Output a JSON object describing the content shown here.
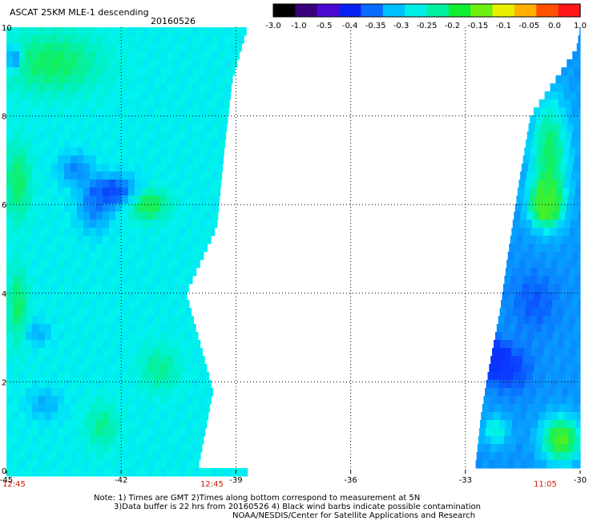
{
  "header": {
    "title": "ASCAT 25KM MLE-1 descending",
    "date": "20160526"
  },
  "colorbar": {
    "labels": [
      "-3.0",
      "-1.0",
      "-0.5",
      "-0.4",
      "-0.35",
      "-0.3",
      "-0.25",
      "-0.2",
      "-0.15",
      "-0.1",
      "-0.05",
      "0.0",
      "1.0"
    ],
    "colors": [
      "#000000",
      "#3a007a",
      "#4a0ad0",
      "#0820f0",
      "#0a6cff",
      "#00bfff",
      "#00f0e8",
      "#00f0a0",
      "#10f030",
      "#70f010",
      "#e8f000",
      "#ffb000",
      "#ff5000",
      "#ff1818"
    ]
  },
  "time_labels": {
    "left": "12:45",
    "middle": "12:45",
    "right": "11:05"
  },
  "notes": {
    "line1": "Note: 1) Times are GMT 2)Times along bottom correspond to measurement at 5N",
    "line2": "3)Data buffer is 22 hrs from 20160526 4) Black wind barbs indicate possible contamination",
    "line3": "NOAA/NESDIS/Center for Satellite Applications and Research"
  },
  "chart_data": {
    "type": "heatmap",
    "title": "ASCAT 25KM MLE-1 descending",
    "xlim": [
      -45,
      -30
    ],
    "ylim": [
      0,
      10
    ],
    "x_ticks": [
      "-45",
      "-42",
      "-39",
      "-36",
      "-33",
      "-30"
    ],
    "y_ticks": [
      "0",
      "2",
      "4",
      "6",
      "8",
      "10"
    ],
    "grid": true,
    "colorscale": "MLE-1 value",
    "swaths": [
      {
        "name": "left",
        "time": "12:45",
        "right_edge": [
          [
            0,
            -40.0
          ],
          [
            1.8,
            -39.6
          ],
          [
            4.0,
            -40.3
          ],
          [
            5.5,
            -39.5
          ],
          [
            7.3,
            -39.3
          ],
          [
            8.8,
            -39.1
          ],
          [
            10,
            -38.7
          ]
        ],
        "dominant": "cyan",
        "features": [
          {
            "type": "low",
            "x": -42.2,
            "y": 6.3,
            "rx": 0.7,
            "ry": 0.4,
            "value": -0.4
          },
          {
            "type": "low",
            "x": -43.2,
            "y": 6.8,
            "rx": 0.5,
            "ry": 0.4,
            "value": -0.35
          },
          {
            "type": "low",
            "x": -42.7,
            "y": 5.9,
            "rx": 0.5,
            "ry": 0.6,
            "value": -0.35
          },
          {
            "type": "high",
            "x": -43.8,
            "y": 9.2,
            "rx": 1.5,
            "ry": 0.8,
            "value": -0.2
          },
          {
            "type": "high",
            "x": -41.3,
            "y": 6.0,
            "rx": 0.6,
            "ry": 0.4,
            "value": -0.18
          },
          {
            "type": "high",
            "x": -44.7,
            "y": 6.5,
            "rx": 0.4,
            "ry": 1.0,
            "value": -0.2
          },
          {
            "type": "high",
            "x": -44.7,
            "y": 3.7,
            "rx": 0.3,
            "ry": 1.0,
            "value": -0.2
          },
          {
            "type": "high",
            "x": -41.0,
            "y": 2.3,
            "rx": 0.6,
            "ry": 0.6,
            "value": -0.22
          },
          {
            "type": "high",
            "x": -42.5,
            "y": 1.0,
            "rx": 0.5,
            "ry": 0.6,
            "value": -0.22
          },
          {
            "type": "low",
            "x": -44.0,
            "y": 1.5,
            "rx": 0.5,
            "ry": 0.4,
            "value": -0.32
          },
          {
            "type": "low",
            "x": -44.2,
            "y": 3.1,
            "rx": 0.4,
            "ry": 0.3,
            "value": -0.32
          },
          {
            "type": "low",
            "x": -44.8,
            "y": 9.3,
            "rx": 0.2,
            "ry": 0.3,
            "value": -0.4
          }
        ]
      },
      {
        "name": "right",
        "time": "11:05",
        "left_edge": [
          [
            0,
            -32.75
          ],
          [
            1.2,
            -32.6
          ],
          [
            2.0,
            -32.45
          ],
          [
            3.6,
            -32.1
          ],
          [
            4.8,
            -31.9
          ],
          [
            6.5,
            -31.6
          ],
          [
            8.0,
            -31.3
          ],
          [
            9.5,
            -30.1
          ],
          [
            10,
            -30.0
          ]
        ],
        "dominant": "blue",
        "features": [
          {
            "type": "low",
            "x": -31.8,
            "y": 2.3,
            "rx": 0.6,
            "ry": 0.6,
            "value": -0.4
          },
          {
            "type": "low",
            "x": -31.2,
            "y": 3.8,
            "rx": 0.7,
            "ry": 0.8,
            "value": -0.38
          },
          {
            "type": "low",
            "x": -32.2,
            "y": 2.5,
            "rx": 0.3,
            "ry": 0.4,
            "value": -0.5
          },
          {
            "type": "high",
            "x": -30.8,
            "y": 7.2,
            "rx": 0.6,
            "ry": 1.5,
            "value": -0.2
          },
          {
            "type": "high",
            "x": -30.9,
            "y": 6.0,
            "rx": 0.5,
            "ry": 0.6,
            "value": -0.15
          },
          {
            "type": "high",
            "x": -30.5,
            "y": 0.7,
            "rx": 0.6,
            "ry": 0.6,
            "value": -0.15
          },
          {
            "type": "high",
            "x": -32.2,
            "y": 0.9,
            "rx": 0.4,
            "ry": 0.4,
            "value": -0.25
          }
        ]
      }
    ]
  }
}
